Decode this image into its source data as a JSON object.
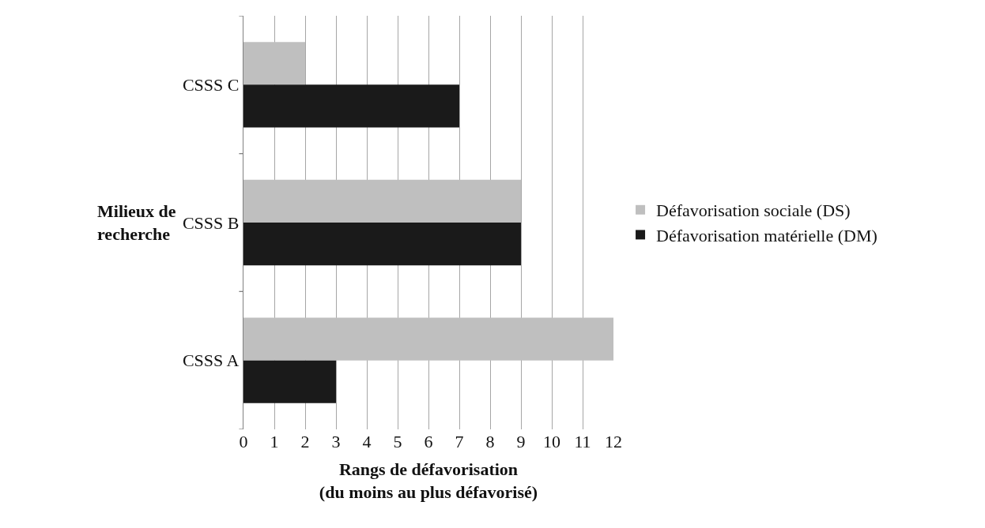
{
  "chart_data": {
    "type": "bar",
    "orientation": "horizontal",
    "categories": [
      "CSSS C",
      "CSSS B",
      "CSSS A"
    ],
    "series": [
      {
        "name": "Défavorisation sociale (DS)",
        "color": "#bfbfbf",
        "values": [
          2,
          9,
          12
        ]
      },
      {
        "name": "Défavorisation matérielle (DM)",
        "color": "#1a1a1a",
        "values": [
          7,
          9,
          3
        ]
      }
    ],
    "xlabel": "Rangs de défavorisation\n(du moins au plus défavorisé)",
    "ylabel": "Milieux de recherche",
    "xlim": [
      0,
      12
    ],
    "xticks": [
      0,
      1,
      2,
      3,
      4,
      5,
      6,
      7,
      8,
      9,
      10,
      11,
      12
    ],
    "grid": "x",
    "legend": "right"
  }
}
